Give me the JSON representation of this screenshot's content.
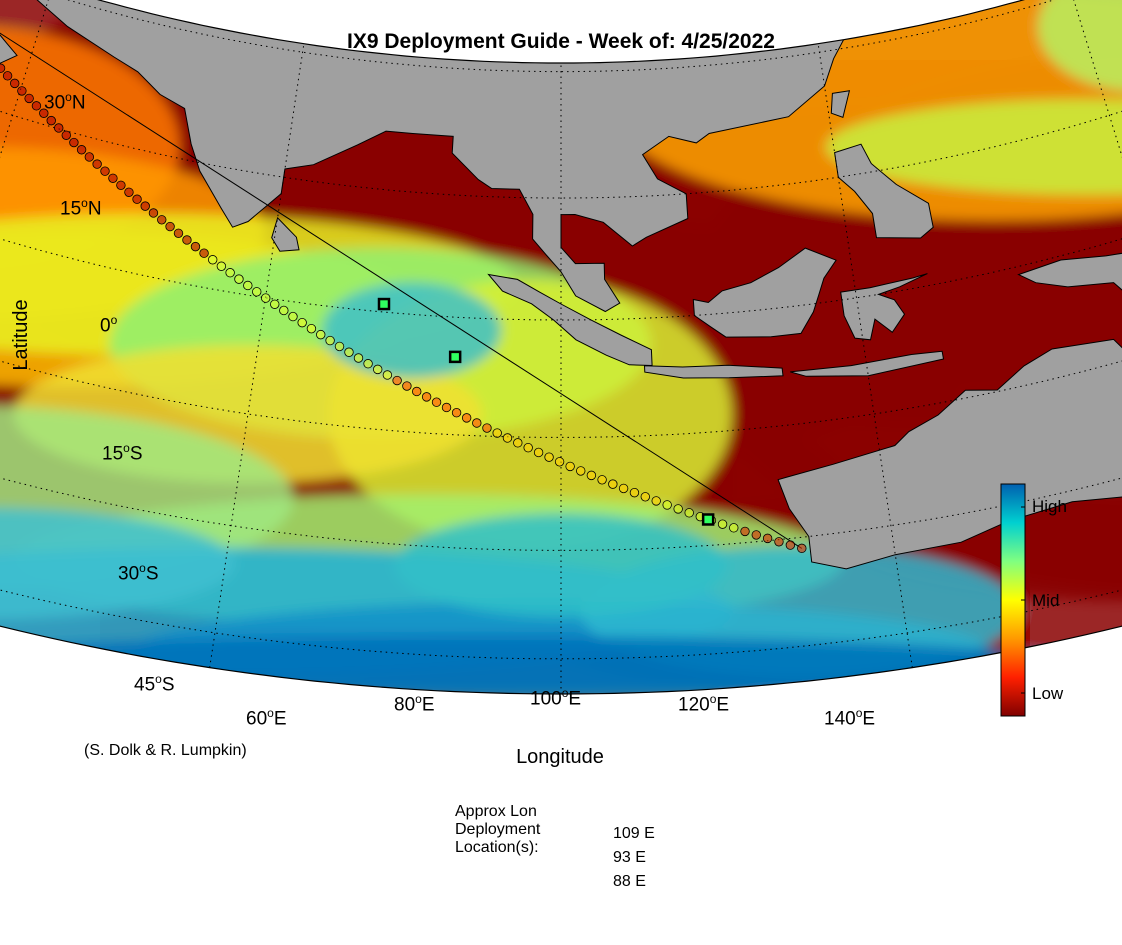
{
  "title": "IX9 Deployment Guide - Week of: 4/25/2022",
  "axes": {
    "ylabel": "Latitude",
    "xlabel": "Longitude",
    "lat_ticks": [
      {
        "num": "30",
        "hem": "N"
      },
      {
        "num": "15",
        "hem": "N"
      },
      {
        "num": "0",
        "hem": ""
      },
      {
        "num": "15",
        "hem": "S"
      },
      {
        "num": "30",
        "hem": "S"
      },
      {
        "num": "45",
        "hem": "S"
      }
    ],
    "lon_ticks": [
      {
        "num": "60",
        "hem": "E"
      },
      {
        "num": "80",
        "hem": "E"
      },
      {
        "num": "100",
        "hem": "E"
      },
      {
        "num": "120",
        "hem": "E"
      },
      {
        "num": "140",
        "hem": "E"
      }
    ]
  },
  "colorbar": {
    "high_label": "High",
    "mid_label": "Mid",
    "low_label": "Low",
    "colors": [
      "#800000",
      "#ff2000",
      "#ff9900",
      "#ffff00",
      "#80ff80",
      "#00d0d0",
      "#0060b0"
    ]
  },
  "credit": "(S. Dolk & R. Lumpkin)",
  "deployment": {
    "heading_lines": [
      "Approx Lon",
      "Deployment",
      "Location(s):"
    ],
    "locations": [
      "109 E",
      "93 E",
      "88 E"
    ]
  },
  "land_color": "#a0a0a0",
  "map_extent": {
    "lon_min": 50,
    "lon_max": 150,
    "lat_min": -50,
    "lat_max": 31
  },
  "ix9_track": {
    "start": {
      "lon": 51.5,
      "lat": 26.0
    },
    "end": {
      "lon": 114.5,
      "lat": -31.5
    },
    "marker_count": 96
  },
  "deployment_points": [
    {
      "lon": 109,
      "lat": -26.5
    },
    {
      "lon": 93,
      "lat": -5.0
    },
    {
      "lon": 88,
      "lat": 1.0
    }
  ]
}
